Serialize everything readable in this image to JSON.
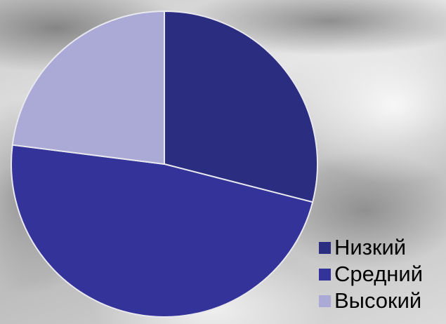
{
  "chart_data": {
    "type": "pie",
    "categories": [
      "Низкий",
      "Средний",
      "Высокий"
    ],
    "values": [
      29,
      48,
      23
    ],
    "colors": [
      "#2b2d80",
      "#333399",
      "#abaad6"
    ],
    "legend_position": "bottom-right",
    "legend": [
      {
        "label": "Низкий",
        "color": "#2b2d80"
      },
      {
        "label": "Средний",
        "color": "#333399"
      },
      {
        "label": "Высокий",
        "color": "#abaad6"
      }
    ]
  }
}
